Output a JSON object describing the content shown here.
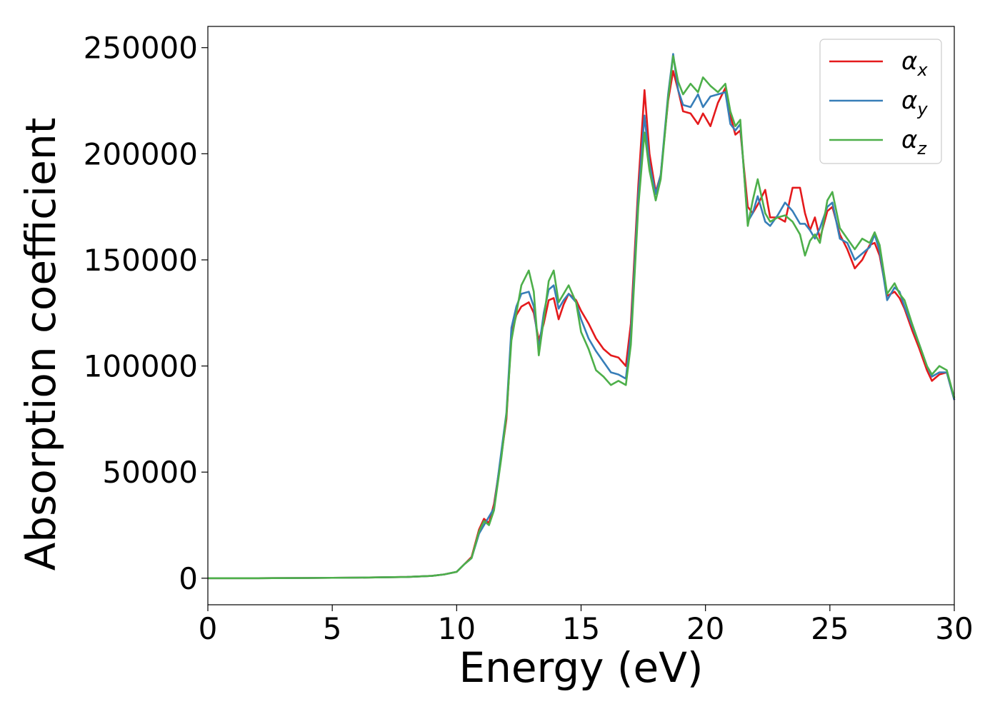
{
  "chart_data": {
    "type": "line",
    "xlabel": "Energy (eV)",
    "ylabel": "Absorption coefficient",
    "xlim": [
      0,
      30
    ],
    "ylim": [
      -12500,
      260000
    ],
    "x_ticks": [
      "0",
      "5",
      "10",
      "15",
      "20",
      "25",
      "30"
    ],
    "y_ticks": [
      "0",
      "50000",
      "100000",
      "150000",
      "200000",
      "250000"
    ],
    "grid": false,
    "legend_position": "top-right",
    "series": [
      {
        "name": "α_x",
        "symbol": "α",
        "subscript": "x",
        "color": "#e41a1c",
        "x": [
          0,
          2,
          4,
          6,
          8,
          9,
          9.5,
          10,
          10.3,
          10.6,
          10.9,
          11.1,
          11.3,
          11.5,
          11.8,
          12.0,
          12.2,
          12.4,
          12.6,
          12.9,
          13.1,
          13.3,
          13.5,
          13.7,
          13.9,
          14.1,
          14.3,
          14.5,
          14.8,
          15.0,
          15.3,
          15.6,
          15.9,
          16.2,
          16.5,
          16.8,
          17.0,
          17.3,
          17.55,
          17.75,
          18.0,
          18.2,
          18.5,
          18.7,
          18.9,
          19.1,
          19.4,
          19.7,
          19.9,
          20.2,
          20.5,
          20.8,
          21.0,
          21.2,
          21.4,
          21.7,
          21.9,
          22.1,
          22.4,
          22.6,
          22.9,
          23.2,
          23.5,
          23.8,
          24.0,
          24.2,
          24.4,
          24.6,
          24.9,
          25.1,
          25.4,
          25.7,
          26.0,
          26.3,
          26.6,
          26.8,
          27.0,
          27.3,
          27.6,
          27.8,
          28.0,
          28.3,
          28.6,
          28.9,
          29.1,
          29.4,
          29.7,
          30.0
        ],
        "values": [
          0,
          0,
          100,
          300,
          600,
          1100,
          1800,
          3000,
          6500,
          10000,
          23000,
          28000,
          26000,
          35000,
          58000,
          75000,
          115000,
          124000,
          128000,
          130000,
          125000,
          112000,
          120000,
          131000,
          132000,
          122000,
          129000,
          134000,
          131000,
          126000,
          120000,
          113000,
          108000,
          105000,
          104000,
          100000,
          120000,
          185000,
          230000,
          200000,
          182000,
          190000,
          225000,
          239000,
          230000,
          220000,
          219000,
          214000,
          219000,
          213000,
          224000,
          231000,
          218000,
          209000,
          211000,
          175000,
          172000,
          176000,
          183000,
          170000,
          170000,
          168000,
          184000,
          184000,
          172000,
          164000,
          170000,
          160000,
          173000,
          175000,
          162000,
          155000,
          146000,
          150000,
          157000,
          158000,
          152000,
          133000,
          135000,
          132000,
          127000,
          117000,
          108000,
          98000,
          93000,
          96000,
          97000,
          84000
        ]
      },
      {
        "name": "α_y",
        "symbol": "α",
        "subscript": "y",
        "color": "#377eb8",
        "x": [
          0,
          2,
          4,
          6,
          8,
          9,
          9.5,
          10,
          10.3,
          10.6,
          10.9,
          11.1,
          11.3,
          11.5,
          11.8,
          12.0,
          12.2,
          12.4,
          12.6,
          12.9,
          13.1,
          13.3,
          13.5,
          13.7,
          13.9,
          14.1,
          14.3,
          14.5,
          14.8,
          15.0,
          15.3,
          15.6,
          15.9,
          16.2,
          16.5,
          16.8,
          17.0,
          17.3,
          17.55,
          17.75,
          18.0,
          18.2,
          18.5,
          18.7,
          18.9,
          19.1,
          19.4,
          19.7,
          19.9,
          20.2,
          20.5,
          20.8,
          21.0,
          21.2,
          21.4,
          21.7,
          21.9,
          22.1,
          22.4,
          22.6,
          22.9,
          23.2,
          23.5,
          23.8,
          24.0,
          24.2,
          24.4,
          24.6,
          24.9,
          25.1,
          25.4,
          25.7,
          26.0,
          26.3,
          26.6,
          26.8,
          27.0,
          27.3,
          27.6,
          27.8,
          28.0,
          28.3,
          28.6,
          28.9,
          29.1,
          29.4,
          29.7,
          30.0
        ],
        "values": [
          0,
          0,
          100,
          300,
          600,
          1100,
          1800,
          3000,
          6500,
          9500,
          21000,
          25000,
          29000,
          33000,
          60000,
          78000,
          118000,
          128000,
          134000,
          135000,
          128000,
          108000,
          125000,
          136000,
          138000,
          127000,
          131000,
          134000,
          130000,
          122000,
          113000,
          107000,
          102000,
          97000,
          96000,
          94000,
          115000,
          180000,
          218000,
          195000,
          181000,
          190000,
          228000,
          247000,
          230000,
          223000,
          222000,
          228000,
          222000,
          227000,
          228000,
          229000,
          214000,
          211000,
          214000,
          168000,
          172000,
          180000,
          168000,
          166000,
          171000,
          177000,
          173000,
          167000,
          167000,
          164000,
          160000,
          165000,
          175000,
          177000,
          160000,
          158000,
          150000,
          153000,
          156000,
          162000,
          154000,
          131000,
          137000,
          135000,
          128000,
          119000,
          110000,
          100000,
          95000,
          97000,
          97000,
          84000
        ]
      },
      {
        "name": "α_z",
        "symbol": "α",
        "subscript": "z",
        "color": "#4daf4a",
        "x": [
          0,
          2,
          4,
          6,
          8,
          9,
          9.5,
          10,
          10.3,
          10.6,
          10.9,
          11.1,
          11.3,
          11.5,
          11.8,
          12.0,
          12.2,
          12.4,
          12.6,
          12.9,
          13.1,
          13.3,
          13.5,
          13.7,
          13.9,
          14.1,
          14.3,
          14.5,
          14.8,
          15.0,
          15.3,
          15.6,
          15.9,
          16.2,
          16.5,
          16.8,
          17.0,
          17.3,
          17.55,
          17.75,
          18.0,
          18.2,
          18.5,
          18.7,
          18.9,
          19.1,
          19.4,
          19.7,
          19.9,
          20.2,
          20.5,
          20.8,
          21.0,
          21.2,
          21.4,
          21.7,
          21.9,
          22.1,
          22.4,
          22.6,
          22.9,
          23.2,
          23.5,
          23.8,
          24.0,
          24.2,
          24.4,
          24.6,
          24.9,
          25.1,
          25.4,
          25.7,
          26.0,
          26.3,
          26.6,
          26.8,
          27.0,
          27.3,
          27.6,
          27.8,
          28.0,
          28.3,
          28.6,
          28.9,
          29.1,
          29.4,
          29.7,
          30.0
        ],
        "values": [
          0,
          0,
          100,
          300,
          600,
          1100,
          1800,
          3000,
          6500,
          9500,
          22000,
          27000,
          25000,
          32000,
          57000,
          77000,
          112000,
          125000,
          138000,
          145000,
          135000,
          105000,
          122000,
          140000,
          145000,
          130000,
          134000,
          138000,
          130000,
          116000,
          108000,
          98000,
          95000,
          91000,
          93000,
          91000,
          110000,
          175000,
          210000,
          192000,
          178000,
          188000,
          226000,
          246000,
          234000,
          228000,
          233000,
          229000,
          236000,
          232000,
          229000,
          233000,
          220000,
          213000,
          216000,
          166000,
          178000,
          188000,
          172000,
          168000,
          170000,
          171000,
          168000,
          162000,
          152000,
          159000,
          162000,
          158000,
          178000,
          182000,
          165000,
          160000,
          155000,
          160000,
          158000,
          163000,
          157000,
          134000,
          139000,
          134000,
          131000,
          120000,
          110000,
          100000,
          96000,
          100000,
          98000,
          85000
        ]
      }
    ]
  }
}
